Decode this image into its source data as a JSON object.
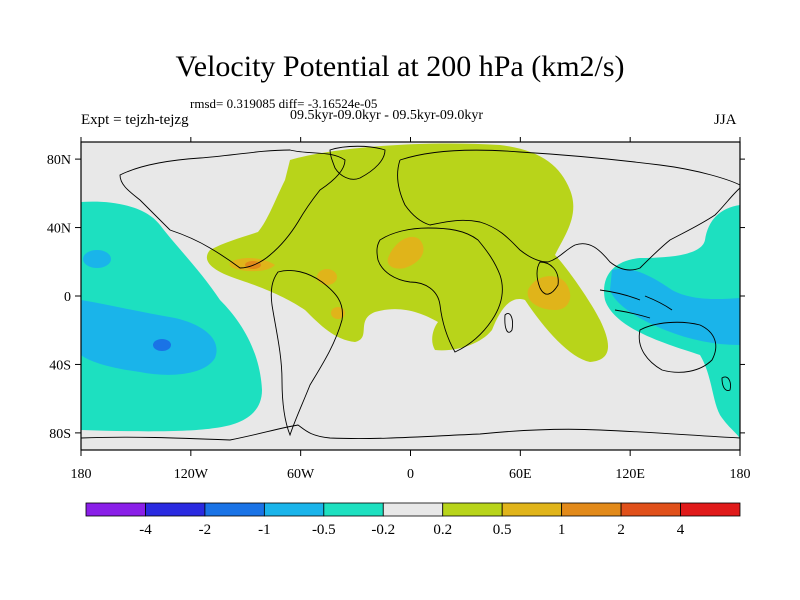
{
  "title": "Velocity Potential at 200 hPa (km2/s)",
  "stats_line": "rmsd= 0.319085 diff= -3.16524e-05",
  "experiment_periods": "09.5kyr-09.0kyr - 09.5kyr-09.0kyr",
  "experiment_label": "Expt = tejzh-tejzg",
  "season": "JJA",
  "map": {
    "x_ticks": [
      {
        "lon": -180,
        "label": "180"
      },
      {
        "lon": -120,
        "label": "120W"
      },
      {
        "lon": -60,
        "label": "60W"
      },
      {
        "lon": 0,
        "label": "0"
      },
      {
        "lon": 60,
        "label": "60E"
      },
      {
        "lon": 120,
        "label": "120E"
      },
      {
        "lon": 180,
        "label": "180"
      }
    ],
    "y_ticks": [
      {
        "lat": 80,
        "label": "80N"
      },
      {
        "lat": 40,
        "label": "40N"
      },
      {
        "lat": 0,
        "label": "0"
      },
      {
        "lat": -40,
        "label": "40S"
      },
      {
        "lat": -80,
        "label": "80S"
      }
    ],
    "lon_range": [
      -180,
      180
    ],
    "lat_range": [
      -90,
      90
    ]
  },
  "colorbar": {
    "colors": [
      "#8a1fe8",
      "#2a2ae0",
      "#1a73e6",
      "#1ab4ea",
      "#1de0c0",
      "#e8e8e8",
      "#b8d41a",
      "#e0b41a",
      "#e28a1a",
      "#e0501a",
      "#e01a1a"
    ],
    "labels": [
      "-4",
      "-2",
      "-1",
      "-0.5",
      "-0.2",
      "0.2",
      "0.5",
      "1",
      "2",
      "4"
    ]
  },
  "palette": {
    "neutral": "#e8e8e8",
    "pos_low": "#b8d41a",
    "pos_mid": "#e0b41a",
    "pos_high": "#e28a1a",
    "neg_low": "#1de0c0",
    "neg_mid": "#1ab4ea",
    "neg_high": "#1a73e6"
  }
}
